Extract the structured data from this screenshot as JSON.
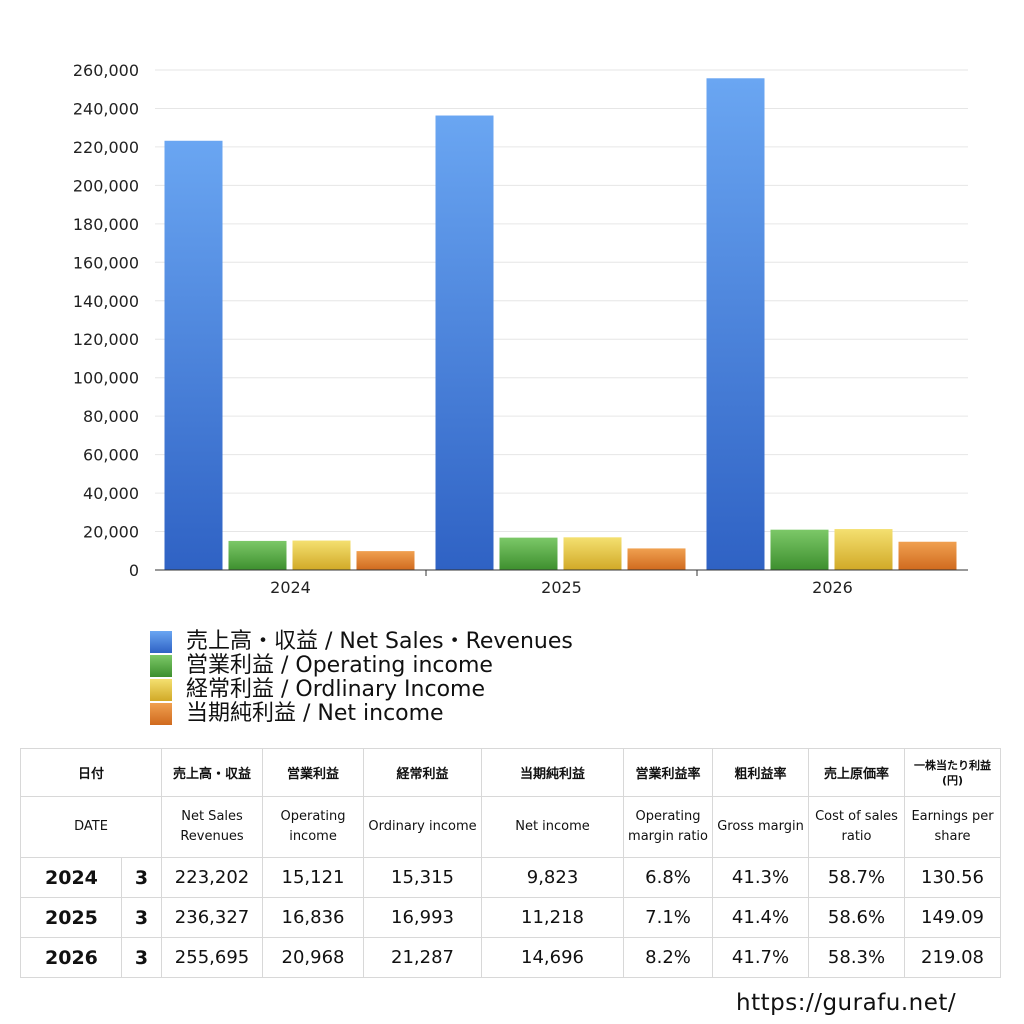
{
  "chart_data": {
    "type": "bar",
    "categories": [
      "2024",
      "2025",
      "2026"
    ],
    "series": [
      {
        "name": "売上高・収益 / Net Sales・Revenues",
        "color": "#3f7fe0",
        "values": [
          223202,
          236327,
          255695
        ]
      },
      {
        "name": "営業利益 / Operating income",
        "color": "#4ea53c",
        "values": [
          15121,
          16836,
          20968
        ]
      },
      {
        "name": "経常利益 / Ordlinary Income",
        "color": "#e2c23a",
        "values": [
          15315,
          16993,
          21287
        ]
      },
      {
        "name": "当期純利益 / Net income",
        "color": "#e07e2c",
        "values": [
          9823,
          11218,
          14696
        ]
      }
    ],
    "ylim": [
      0,
      260000
    ],
    "yticks": [
      "0",
      "20,000",
      "40,000",
      "60,000",
      "80,000",
      "100,000",
      "120,000",
      "140,000",
      "160,000",
      "180,000",
      "200,000",
      "220,000",
      "240,000",
      "260,000"
    ],
    "grid": true,
    "legend_position": "bottom-left"
  },
  "table": {
    "headers_jp": [
      "日付",
      "売上高・収益",
      "営業利益",
      "経常利益",
      "当期純利益",
      "営業利益率",
      "粗利益率",
      "売上原価率",
      "一株当たり利益(円)"
    ],
    "headers_en": [
      "DATE",
      "Net Sales Revenues",
      "Operating income",
      "Ordinary income",
      "Net income",
      "Operating margin ratio",
      "Gross margin",
      "Cost of sales ratio",
      "Earnings per share"
    ],
    "rows": [
      {
        "year": "2024",
        "month": "3",
        "sales": "223,202",
        "op": "15,121",
        "ord": "15,315",
        "net": "9,823",
        "op_margin": "6.8%",
        "gross": "41.3%",
        "cost": "58.7%",
        "eps": "130.56"
      },
      {
        "year": "2025",
        "month": "3",
        "sales": "236,327",
        "op": "16,836",
        "ord": "16,993",
        "net": "11,218",
        "op_margin": "7.1%",
        "gross": "41.4%",
        "cost": "58.6%",
        "eps": "149.09"
      },
      {
        "year": "2026",
        "month": "3",
        "sales": "255,695",
        "op": "20,968",
        "ord": "21,287",
        "net": "14,696",
        "op_margin": "8.2%",
        "gross": "41.7%",
        "cost": "58.3%",
        "eps": "219.08"
      }
    ]
  },
  "footer": {
    "url": "https://gurafu.net/"
  }
}
